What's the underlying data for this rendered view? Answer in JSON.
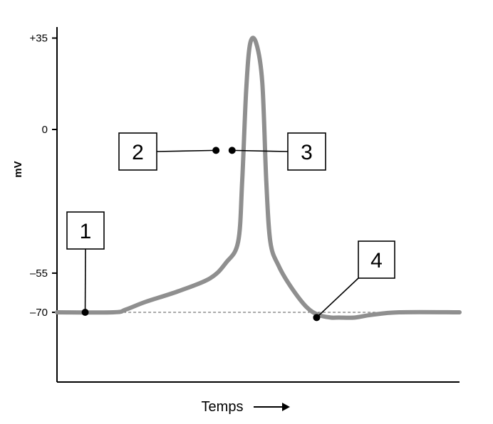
{
  "chart_data": {
    "type": "line",
    "title": "",
    "xlabel": "Temps",
    "ylabel": "mV",
    "ylim": [
      -100,
      35
    ],
    "yticks": [
      {
        "value": 35,
        "label": "+35"
      },
      {
        "value": 0,
        "label": "0"
      },
      {
        "value": -55,
        "label": "–55"
      },
      {
        "value": -70,
        "label": "–70"
      }
    ],
    "resting_level": -70,
    "series": [
      {
        "color": "#8f8f8f",
        "x": [
          0,
          14,
          17,
          22,
          30,
          38,
          42,
          45,
          46,
          47,
          48,
          49.5,
          51,
          52,
          53,
          55,
          58,
          62,
          65,
          68,
          70,
          74,
          78,
          85,
          100
        ],
        "y": [
          -70,
          -70,
          -69,
          -66,
          -62,
          -57,
          -51,
          -43,
          -20,
          15,
          33,
          33,
          18,
          -20,
          -43,
          -52,
          -60,
          -68,
          -71,
          -72,
          -72,
          -72,
          -71,
          -70,
          -70
        ]
      }
    ],
    "callouts": [
      {
        "label": "1",
        "point": [
          7,
          -70
        ]
      },
      {
        "label": "2",
        "point": [
          39.5,
          -8
        ]
      },
      {
        "label": "3",
        "point": [
          43.5,
          -8
        ]
      },
      {
        "label": "4",
        "point": [
          64.5,
          -72
        ]
      }
    ],
    "grid": false,
    "legend": "none"
  },
  "colors": {
    "trace": "#8f8f8f",
    "axis": "#000000",
    "dashed": "#555555"
  }
}
